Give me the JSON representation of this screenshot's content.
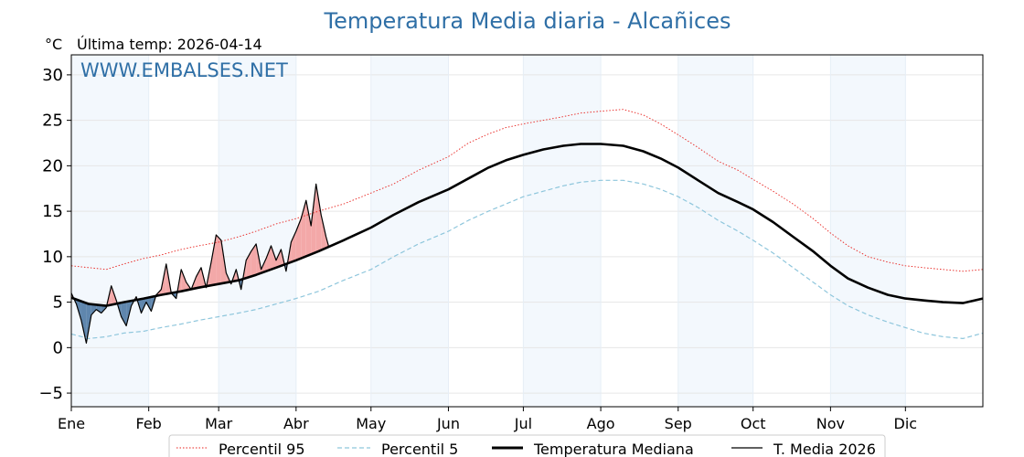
{
  "header": {
    "title": "Temperatura Media diaria - Alcañices",
    "unit": "°C",
    "last_temp": "Última temp: 2026-04-14",
    "watermark": "WWW.EMBALSES.NET"
  },
  "colors": {
    "p95": "#e8201c",
    "p5": "#8ec6dc",
    "median": "#000000",
    "current": "#000000",
    "above_fill": "#f3a8a8",
    "below_fill": "#5f86ad",
    "band_fill": "#f3f8fd",
    "title": "#2f6fa6"
  },
  "chart_data": {
    "type": "line",
    "title": "Temperatura Media diaria - Alcañices",
    "ylabel": "°C",
    "ylim": [
      -6.5,
      32.2
    ],
    "xlim": [
      1,
      366
    ],
    "yticks": [
      -5,
      0,
      5,
      10,
      15,
      20,
      25,
      30
    ],
    "months": [
      {
        "label": "Ene",
        "day": 1
      },
      {
        "label": "Feb",
        "day": 32
      },
      {
        "label": "Mar",
        "day": 60
      },
      {
        "label": "Abr",
        "day": 91
      },
      {
        "label": "May",
        "day": 121
      },
      {
        "label": "Jun",
        "day": 152
      },
      {
        "label": "Jul",
        "day": 182
      },
      {
        "label": "Ago",
        "day": 213
      },
      {
        "label": "Sep",
        "day": 244
      },
      {
        "label": "Oct",
        "day": 274
      },
      {
        "label": "Nov",
        "day": 305
      },
      {
        "label": "Dic",
        "day": 335
      }
    ],
    "shaded_months": [
      [
        1,
        32
      ],
      [
        60,
        91
      ],
      [
        121,
        152
      ],
      [
        182,
        213
      ],
      [
        244,
        274
      ],
      [
        305,
        335
      ]
    ],
    "grid": true,
    "legend_position": "bottom-center",
    "series": [
      {
        "name": "Percentil 95",
        "style": "dotted",
        "x": [
          1,
          8,
          15,
          22,
          30,
          37,
          45,
          52,
          60,
          68,
          75,
          83,
          91,
          100,
          110,
          121,
          130,
          140,
          152,
          160,
          168,
          175,
          182,
          190,
          198,
          205,
          213,
          222,
          230,
          237,
          244,
          252,
          260,
          268,
          274,
          282,
          290,
          298,
          305,
          312,
          320,
          328,
          335,
          342,
          350,
          358,
          366
        ],
        "values": [
          9.0,
          8.8,
          8.6,
          9.2,
          9.8,
          10.2,
          10.8,
          11.2,
          11.6,
          12.2,
          12.8,
          13.6,
          14.2,
          15.0,
          15.8,
          17.0,
          18.0,
          19.5,
          21.0,
          22.5,
          23.5,
          24.2,
          24.6,
          25.0,
          25.4,
          25.8,
          26.0,
          26.2,
          25.6,
          24.6,
          23.4,
          22.0,
          20.5,
          19.5,
          18.5,
          17.2,
          15.8,
          14.2,
          12.6,
          11.2,
          10.0,
          9.4,
          9.0,
          8.8,
          8.6,
          8.4,
          8.6
        ]
      },
      {
        "name": "Percentil 5",
        "style": "dashed",
        "x": [
          1,
          8,
          15,
          22,
          30,
          37,
          45,
          52,
          60,
          68,
          75,
          83,
          91,
          100,
          110,
          121,
          130,
          140,
          152,
          160,
          168,
          175,
          182,
          190,
          198,
          205,
          213,
          222,
          230,
          237,
          244,
          252,
          260,
          268,
          274,
          282,
          290,
          298,
          305,
          312,
          320,
          328,
          335,
          342,
          350,
          358,
          366
        ],
        "values": [
          1.5,
          1.0,
          1.2,
          1.6,
          1.8,
          2.2,
          2.6,
          3.0,
          3.4,
          3.8,
          4.2,
          4.8,
          5.4,
          6.2,
          7.4,
          8.6,
          10.0,
          11.4,
          12.8,
          14.0,
          15.0,
          15.8,
          16.6,
          17.2,
          17.8,
          18.2,
          18.4,
          18.4,
          18.0,
          17.4,
          16.6,
          15.4,
          14.0,
          12.8,
          11.8,
          10.4,
          8.8,
          7.2,
          5.8,
          4.6,
          3.6,
          2.8,
          2.2,
          1.6,
          1.2,
          1.0,
          1.6
        ]
      },
      {
        "name": "Temperatura Mediana",
        "style": "solid-thick",
        "x": [
          1,
          8,
          15,
          22,
          30,
          37,
          45,
          52,
          60,
          68,
          75,
          83,
          91,
          100,
          110,
          121,
          130,
          140,
          152,
          160,
          168,
          175,
          182,
          190,
          198,
          205,
          213,
          222,
          230,
          237,
          244,
          252,
          260,
          268,
          274,
          282,
          290,
          298,
          305,
          312,
          320,
          328,
          335,
          342,
          350,
          358,
          366
        ],
        "values": [
          5.5,
          4.8,
          4.6,
          5.0,
          5.4,
          5.8,
          6.2,
          6.6,
          7.0,
          7.4,
          8.0,
          8.8,
          9.6,
          10.6,
          11.8,
          13.2,
          14.6,
          16.0,
          17.4,
          18.6,
          19.8,
          20.6,
          21.2,
          21.8,
          22.2,
          22.4,
          22.4,
          22.2,
          21.6,
          20.8,
          19.8,
          18.4,
          17.0,
          16.0,
          15.2,
          13.8,
          12.2,
          10.6,
          9.0,
          7.6,
          6.6,
          5.8,
          5.4,
          5.2,
          5.0,
          4.9,
          5.4
        ]
      },
      {
        "name": "T. Media 2026",
        "style": "solid-thin",
        "x": [
          1,
          3,
          5,
          7,
          9,
          11,
          13,
          15,
          17,
          19,
          21,
          23,
          25,
          27,
          29,
          31,
          33,
          35,
          37,
          39,
          41,
          43,
          45,
          47,
          49,
          51,
          53,
          55,
          57,
          59,
          61,
          63,
          65,
          67,
          69,
          71,
          73,
          75,
          77,
          79,
          81,
          83,
          85,
          87,
          89,
          91,
          93,
          95,
          97,
          99,
          101,
          103,
          104
        ],
        "values": [
          6.0,
          4.8,
          3.0,
          0.5,
          3.6,
          4.2,
          3.8,
          4.4,
          6.8,
          5.2,
          3.4,
          2.4,
          4.6,
          5.6,
          3.8,
          5.0,
          4.0,
          5.8,
          6.4,
          9.2,
          6.0,
          5.4,
          8.6,
          7.2,
          6.4,
          7.8,
          8.8,
          6.6,
          9.4,
          12.4,
          11.8,
          8.2,
          7.0,
          8.6,
          6.4,
          9.6,
          10.6,
          11.4,
          8.6,
          9.8,
          11.2,
          9.6,
          10.8,
          8.4,
          11.6,
          12.8,
          14.2,
          16.2,
          13.4,
          18.0,
          14.6,
          12.2,
          11.2
        ]
      }
    ]
  }
}
